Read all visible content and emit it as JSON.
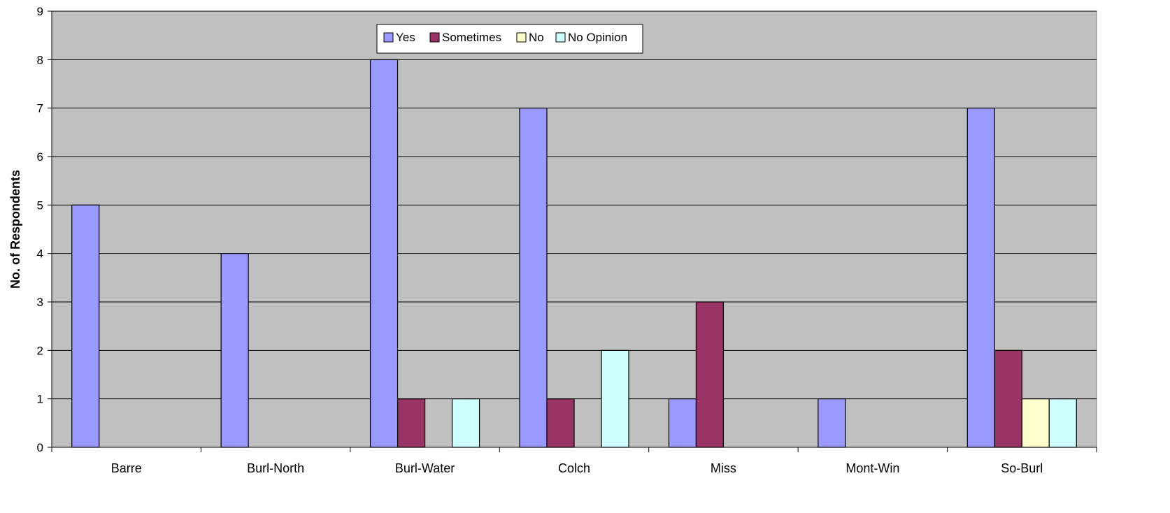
{
  "chart_data": {
    "type": "bar",
    "title": "",
    "xlabel": "",
    "ylabel": "No. of Respondents",
    "ylim": [
      0,
      9
    ],
    "yticks": [
      0,
      1,
      2,
      3,
      4,
      5,
      6,
      7,
      8,
      9
    ],
    "grid": true,
    "legend_position": "top-center",
    "categories": [
      "Barre",
      "Burl-North",
      "Burl-Water",
      "Colch",
      "Miss",
      "Mont-Win",
      "So-Burl"
    ],
    "series": [
      {
        "name": "Yes",
        "color": "#9999ff",
        "values": [
          5,
          4,
          8,
          7,
          1,
          1,
          7
        ]
      },
      {
        "name": "Sometimes",
        "color": "#993366",
        "values": [
          0,
          0,
          1,
          1,
          3,
          0,
          2
        ]
      },
      {
        "name": "No",
        "color": "#ffffcc",
        "values": [
          0,
          0,
          0,
          0,
          0,
          0,
          1
        ]
      },
      {
        "name": "No Opinion",
        "color": "#ccffff",
        "values": [
          0,
          0,
          1,
          2,
          0,
          0,
          1
        ]
      }
    ],
    "plot_background": "#c0c0c0"
  }
}
